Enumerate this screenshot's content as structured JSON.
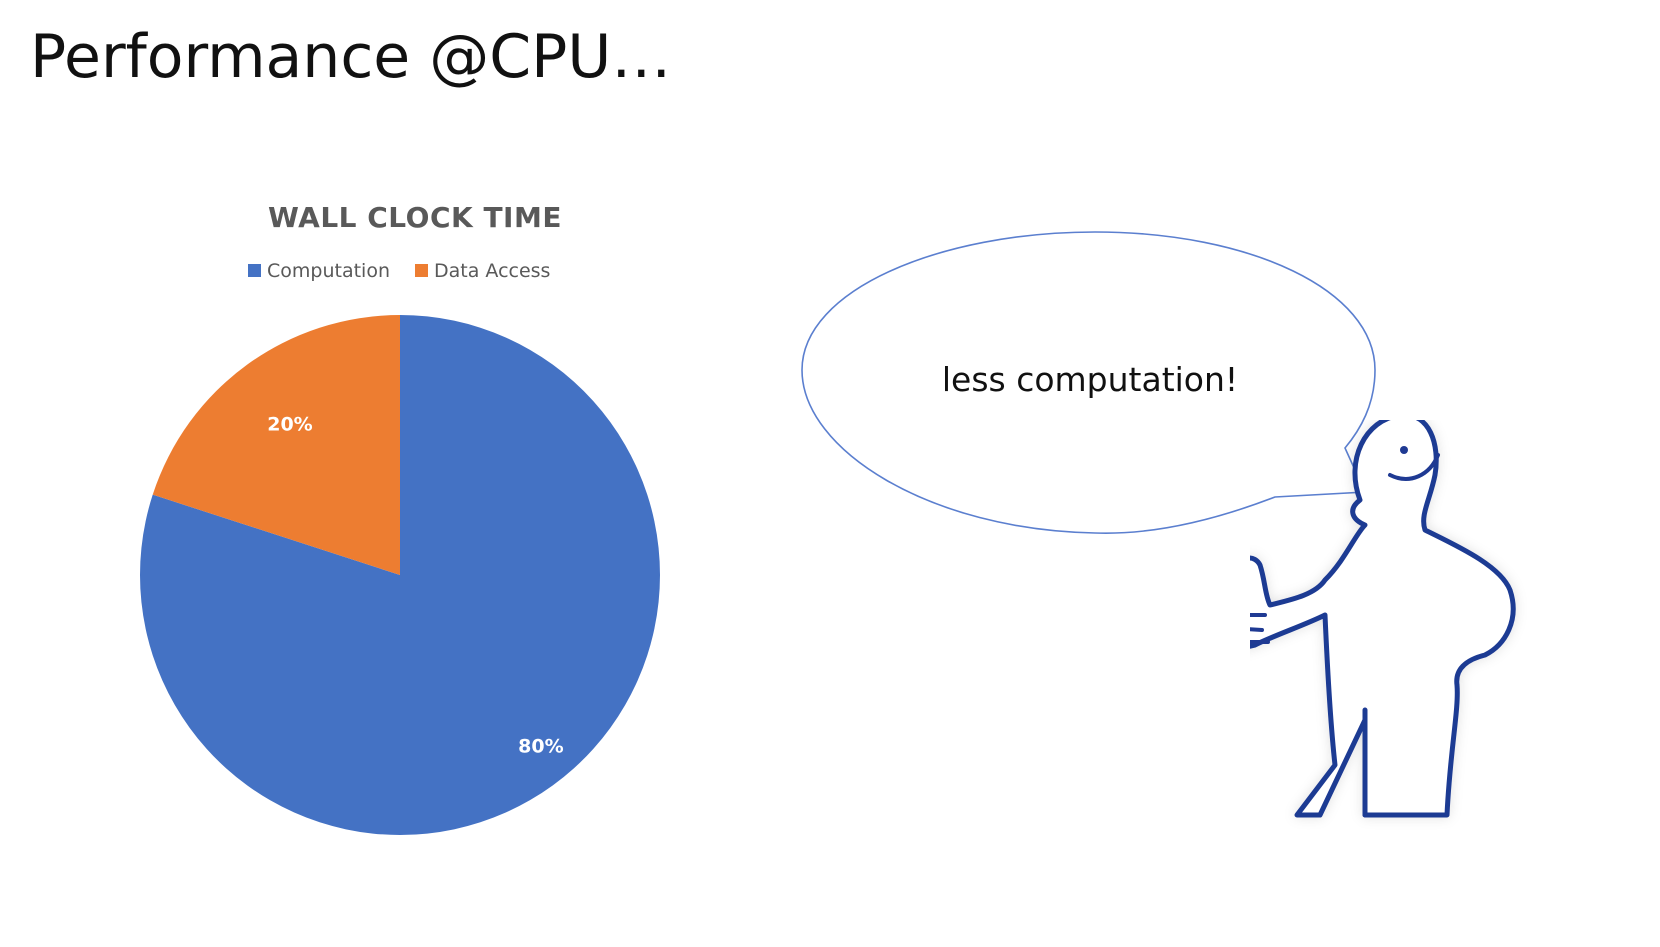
{
  "slide": {
    "title": "Performance @CPU…"
  },
  "speech_bubble": {
    "text": "less computation!"
  },
  "chart_data": {
    "type": "pie",
    "title": "WALL CLOCK TIME",
    "legend_position": "top",
    "series": [
      {
        "name": "Computation",
        "value": 80,
        "label": "80%",
        "color": "#4472C4"
      },
      {
        "name": "Data Access",
        "value": 20,
        "label": "20%",
        "color": "#ED7D31"
      }
    ]
  }
}
